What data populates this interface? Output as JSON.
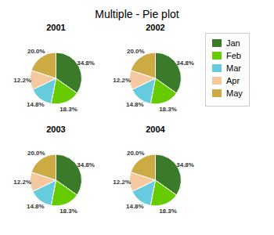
{
  "chart_data": {
    "type": "pie",
    "title": "Multiple - Pie plot",
    "categories": [
      "Jan",
      "Feb",
      "Mar",
      "Apr",
      "May"
    ],
    "series": [
      {
        "name": "2001",
        "values": [
          34.8,
          18.3,
          14.8,
          12.2,
          20.0
        ],
        "value_labels": [
          "34.8%",
          "18.3%",
          "14.8%",
          "12.2%",
          "20.0%"
        ]
      },
      {
        "name": "2002",
        "values": [
          34.8,
          18.3,
          14.8,
          12.2,
          20.0
        ],
        "value_labels": [
          "34.8%",
          "18.3%",
          "14.8%",
          "12.2%",
          "20.0%"
        ]
      },
      {
        "name": "2003",
        "values": [
          34.8,
          18.3,
          14.8,
          12.2,
          20.0
        ],
        "value_labels": [
          "34.8%",
          "18.3%",
          "14.8%",
          "12.2%",
          "20.0%"
        ]
      },
      {
        "name": "2004",
        "values": [
          34.8,
          18.3,
          14.8,
          12.2,
          20.0
        ],
        "value_labels": [
          "34.8%",
          "18.3%",
          "14.8%",
          "12.2%",
          "20.0%"
        ]
      }
    ],
    "colors": [
      "#3a7a2a",
      "#66cc00",
      "#66ccdd",
      "#f5c8a0",
      "#ccaa44"
    ],
    "data_labels": true,
    "legend": "right"
  }
}
